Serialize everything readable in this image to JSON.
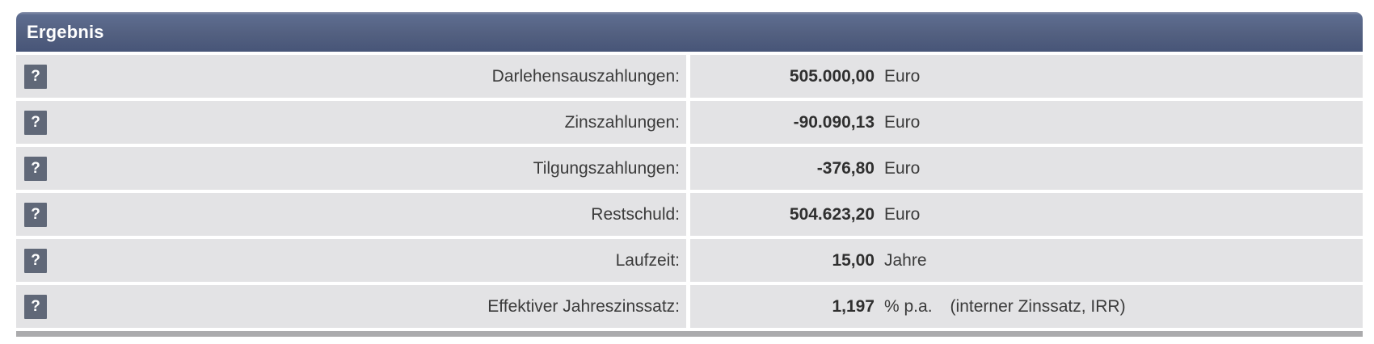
{
  "panel": {
    "title": "Ergebnis",
    "help_label": "?",
    "rows": [
      {
        "label": "Darlehensauszahlungen:",
        "value": "505.000,00",
        "unit": "Euro",
        "note": ""
      },
      {
        "label": "Zinszahlungen:",
        "value": "-90.090,13",
        "unit": "Euro",
        "note": ""
      },
      {
        "label": "Tilgungszahlungen:",
        "value": "-376,80",
        "unit": "Euro",
        "note": ""
      },
      {
        "label": "Restschuld:",
        "value": "504.623,20",
        "unit": "Euro",
        "note": ""
      },
      {
        "label": "Laufzeit:",
        "value": "15,00",
        "unit": "Jahre",
        "note": ""
      },
      {
        "label": "Effektiver Jahreszinssatz:",
        "value": "1,197",
        "unit": "% p.a.",
        "note": "(interner Zinssatz, IRR)"
      }
    ]
  },
  "theme": {
    "header-top": "#5e6d90",
    "header-bottom": "#475578",
    "row-bg": "#e3e3e5",
    "help-bg": "#606878",
    "bar": "#ababad",
    "text": "#3b3b3b"
  }
}
